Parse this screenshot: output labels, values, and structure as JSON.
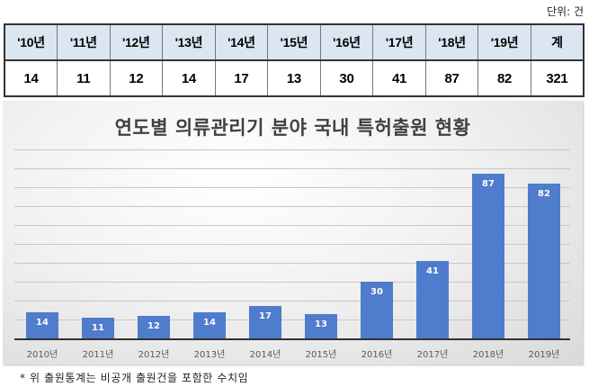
{
  "unit_label": "단위: 건",
  "table": {
    "headers": [
      "'10년",
      "'11년",
      "'12년",
      "'13년",
      "'14년",
      "'15년",
      "'16년",
      "'17년",
      "'18년",
      "'19년",
      "계"
    ],
    "values": [
      "14",
      "11",
      "12",
      "14",
      "17",
      "13",
      "30",
      "41",
      "87",
      "82",
      "321"
    ]
  },
  "colors": {
    "bar": "#4f7ccc",
    "table_header_bg": "#dce6f2",
    "title_text": "#404040"
  },
  "footnote": "* 위 출원통계는 비공개 출원건을 포함한 수치임",
  "chart_data": {
    "type": "bar",
    "title": "연도별 의류관리기 분야 국내 특허출원 현황",
    "categories": [
      "2010년",
      "2011년",
      "2012년",
      "2013년",
      "2014년",
      "2015년",
      "2016년",
      "2017년",
      "2018년",
      "2019년"
    ],
    "values": [
      14,
      11,
      12,
      14,
      17,
      13,
      30,
      41,
      87,
      82
    ],
    "data_labels": [
      "14",
      "11",
      "12",
      "14",
      "17",
      "13",
      "30",
      "41",
      "87",
      "82"
    ],
    "xlabel": "",
    "ylabel": "",
    "ylim": [
      0,
      100
    ],
    "grid": true,
    "gridline_step": 10,
    "y_axis_visible": false,
    "legend": "none"
  }
}
